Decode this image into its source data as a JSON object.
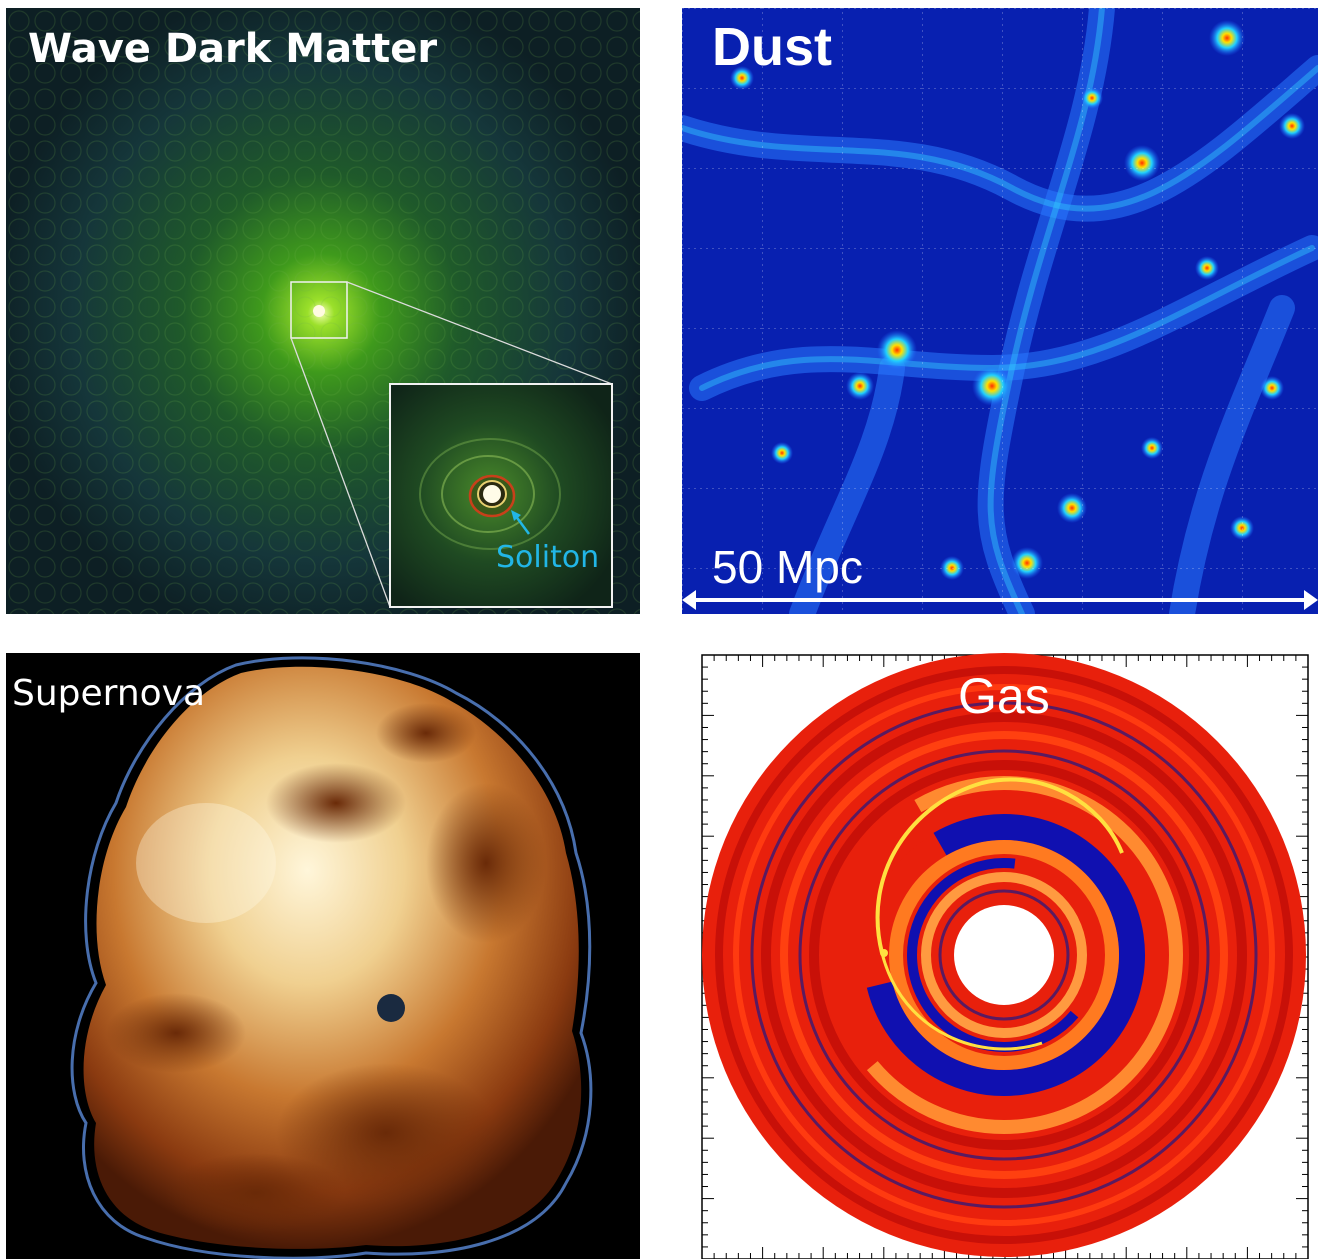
{
  "panels": {
    "wave_dark_matter": {
      "title": "Wave Dark Matter",
      "inset_label": "Soliton"
    },
    "dust": {
      "title": "Dust",
      "scale_label": "50 Mpc"
    },
    "supernova": {
      "title": "Supernova"
    },
    "gas": {
      "title": "Gas"
    }
  },
  "colors": {
    "dust_background": "#0820b0",
    "soliton_label": "#22b6e6",
    "gas_disk": "#e8200c",
    "gas_arm": "#1010b0"
  }
}
